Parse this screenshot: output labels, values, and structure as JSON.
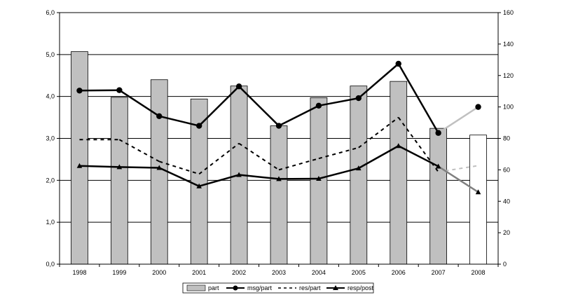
{
  "chart_data": {
    "type": "bar",
    "categories": [
      "1998",
      "1999",
      "2000",
      "2001",
      "2002",
      "2003",
      "2004",
      "2005",
      "2006",
      "2007",
      "2008"
    ],
    "y_left": {
      "range": [
        0,
        6
      ],
      "ticks": [
        "0,0",
        "1,0",
        "2,0",
        "3,0",
        "4,0",
        "5,0",
        "6,0"
      ]
    },
    "y_right": {
      "range": [
        0,
        160
      ],
      "ticks": [
        "0",
        "20",
        "40",
        "60",
        "80",
        "100",
        "120",
        "140",
        "160"
      ]
    },
    "grid": "horizontal major lines on left axis",
    "legend_placement": "bottom",
    "series": [
      {
        "name": "part",
        "kind": "bar",
        "axis": "left",
        "values": [
          5.07,
          3.98,
          4.4,
          3.94,
          4.25,
          3.3,
          3.97,
          4.25,
          4.36,
          3.24,
          3.08
        ],
        "color": "#c0c0c0",
        "last_color": "#ffffff"
      },
      {
        "name": "msg/part",
        "kind": "line",
        "axis": "left",
        "values": [
          4.14,
          4.15,
          3.53,
          3.3,
          4.24,
          3.3,
          3.78,
          3.96,
          4.78,
          3.13,
          3.75
        ],
        "color": "#000000",
        "last_segment_color": "#c0c0c0"
      },
      {
        "name": "res/part",
        "kind": "dashed-line",
        "axis": "left",
        "values": [
          2.97,
          2.97,
          2.45,
          2.15,
          2.88,
          2.25,
          2.52,
          2.78,
          3.5,
          2.2,
          2.35
        ],
        "color": "#000000",
        "last_segment_color": "#c0c0c0"
      },
      {
        "name": "resp/post",
        "kind": "line",
        "axis": "right",
        "values": [
          62.5,
          61.8,
          61.3,
          49.6,
          56.8,
          54.2,
          54.4,
          61.0,
          75.2,
          62.2,
          45.8
        ],
        "color": "#000000",
        "last_segment_color": "#808080"
      }
    ]
  }
}
